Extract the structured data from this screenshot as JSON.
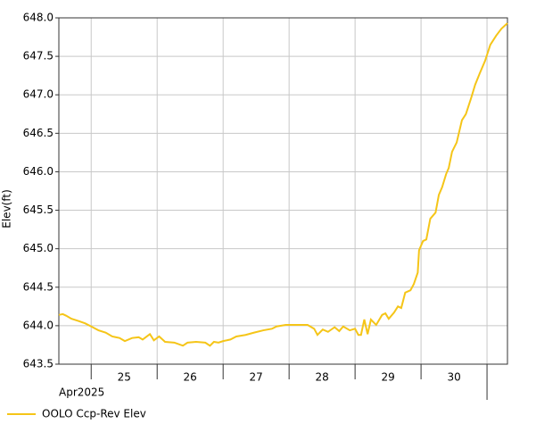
{
  "chart_data": {
    "type": "line",
    "y_label": "Elev(ft)",
    "x_period_label": "Apr2025",
    "x": [
      24.51,
      24.57,
      24.62,
      24.7,
      24.81,
      24.91,
      25.0,
      25.11,
      25.22,
      25.32,
      25.43,
      25.51,
      25.62,
      25.72,
      25.78,
      25.89,
      25.95,
      26.03,
      26.12,
      26.26,
      26.39,
      26.46,
      26.59,
      26.73,
      26.8,
      26.86,
      26.93,
      27.0,
      27.11,
      27.2,
      27.34,
      27.47,
      27.61,
      27.74,
      27.81,
      27.95,
      28.08,
      28.28,
      28.38,
      28.43,
      28.51,
      28.59,
      28.69,
      28.76,
      28.82,
      28.92,
      29.0,
      29.05,
      29.09,
      29.14,
      29.19,
      29.24,
      29.32,
      29.41,
      29.46,
      29.51,
      29.59,
      29.65,
      29.7,
      29.76,
      29.84,
      29.89,
      29.95,
      29.97,
      30.03,
      30.08,
      30.14,
      30.22,
      30.27,
      30.32,
      30.38,
      30.42,
      30.47,
      30.54,
      30.62,
      30.68,
      30.76,
      30.82,
      30.89,
      30.97,
      31.05,
      31.14,
      31.22,
      31.31
    ],
    "series": [
      {
        "name": "OOLO Ccp-Rev Elev",
        "color": "#f5c518",
        "values": [
          644.14,
          644.15,
          644.13,
          644.09,
          644.06,
          644.03,
          643.99,
          643.94,
          643.91,
          643.86,
          643.84,
          643.8,
          643.84,
          643.85,
          643.82,
          643.89,
          643.81,
          643.86,
          643.79,
          643.78,
          643.74,
          643.78,
          643.79,
          643.78,
          643.74,
          643.79,
          643.78,
          643.8,
          643.82,
          643.86,
          643.88,
          643.91,
          643.94,
          643.96,
          643.99,
          644.01,
          644.01,
          644.01,
          643.96,
          643.88,
          643.95,
          643.92,
          643.98,
          643.93,
          643.99,
          643.94,
          643.96,
          643.88,
          643.88,
          644.08,
          643.89,
          644.08,
          644.01,
          644.14,
          644.16,
          644.09,
          644.17,
          644.25,
          644.23,
          644.43,
          644.46,
          644.54,
          644.69,
          644.98,
          645.1,
          645.12,
          645.39,
          645.47,
          645.7,
          645.8,
          645.97,
          646.05,
          646.26,
          646.38,
          646.67,
          646.75,
          646.96,
          647.13,
          647.28,
          647.44,
          647.65,
          647.77,
          647.86,
          647.93
        ]
      }
    ],
    "xlim": [
      24.51,
      31.31
    ],
    "xticks": [
      25,
      26,
      27,
      28,
      29,
      30,
      31
    ],
    "day_labels": [
      "25",
      "26",
      "27",
      "28",
      "29",
      "30"
    ],
    "ylim": [
      643.5,
      648.0
    ],
    "yticks": [
      {
        "value": 643.5,
        "label": "643.5"
      },
      {
        "value": 644,
        "label": "644.0"
      },
      {
        "value": 644.5,
        "label": "644.5"
      },
      {
        "value": 645,
        "label": "645.0"
      },
      {
        "value": 645.5,
        "label": "645.5"
      },
      {
        "value": 646,
        "label": "646.0"
      },
      {
        "value": 646.5,
        "label": "646.5"
      },
      {
        "value": 647,
        "label": "647.0"
      },
      {
        "value": 647.5,
        "label": "647.5"
      },
      {
        "value": 648,
        "label": "648.0"
      }
    ],
    "grid": true
  }
}
